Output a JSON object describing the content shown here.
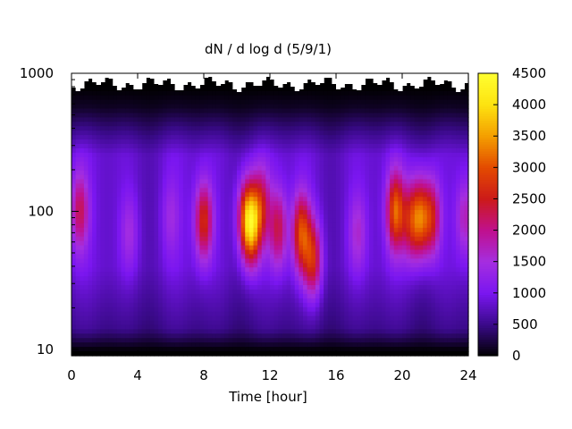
{
  "chart_data": {
    "type": "heatmap",
    "title": "dN / d log d (5/9/1)",
    "xlabel": "Time [hour]",
    "ylabel": "",
    "x_axis": {
      "range": [
        0,
        24
      ],
      "ticks": [
        0,
        4,
        8,
        12,
        16,
        20,
        24
      ],
      "tick_labels": [
        "0",
        "4",
        "8",
        "12",
        "16",
        "20",
        "24"
      ]
    },
    "y_axis": {
      "scale": "log",
      "range": [
        9,
        1000
      ],
      "ticks": [
        10,
        100,
        1000
      ],
      "tick_labels": [
        "10",
        "100",
        "1000"
      ]
    },
    "colorbar": {
      "range": [
        0,
        4500
      ],
      "ticks": [
        0,
        500,
        1000,
        1500,
        2000,
        2500,
        3000,
        3500,
        4000,
        4500
      ],
      "tick_labels": [
        "0",
        "500",
        "1000",
        "1500",
        "2000",
        "2500",
        "3000",
        "3500",
        "4000",
        "4500"
      ],
      "colormap": [
        "#000000",
        "#3a0a8a",
        "#7a16f0",
        "#a52ee0",
        "#c0108e",
        "#cc1a1a",
        "#e34a00",
        "#f49e00",
        "#fde210",
        "#ffff30"
      ]
    },
    "background_level": 1000,
    "hotspots": [
      {
        "x": 0.5,
        "d": 100,
        "value": 2300
      },
      {
        "x": 3.5,
        "d": 70,
        "value": 1600
      },
      {
        "x": 6.0,
        "d": 90,
        "value": 1500
      },
      {
        "x": 8.0,
        "d": 85,
        "value": 2800
      },
      {
        "x": 10.5,
        "d": 90,
        "value": 2500
      },
      {
        "x": 10.9,
        "d": 80,
        "value": 3500
      },
      {
        "x": 11.5,
        "d": 110,
        "value": 2300
      },
      {
        "x": 12.5,
        "d": 75,
        "value": 2400
      },
      {
        "x": 13.9,
        "d": 70,
        "value": 3000
      },
      {
        "x": 14.6,
        "d": 45,
        "value": 2700
      },
      {
        "x": 17.3,
        "d": 70,
        "value": 1700
      },
      {
        "x": 19.6,
        "d": 100,
        "value": 3200
      },
      {
        "x": 20.5,
        "d": 85,
        "value": 2400
      },
      {
        "x": 21.1,
        "d": 90,
        "value": 3000
      },
      {
        "x": 21.8,
        "d": 90,
        "value": 2600
      },
      {
        "x": 23.8,
        "d": 90,
        "value": 1900
      }
    ]
  }
}
